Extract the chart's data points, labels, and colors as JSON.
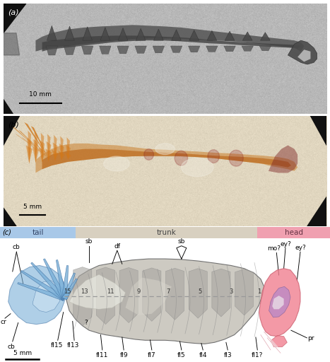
{
  "fig_width": 4.67,
  "fig_height": 5.12,
  "bg_color": "#ffffff",
  "scale_bar_a": "10 mm",
  "scale_bar_b": "5 mm",
  "scale_bar_c": "5 mm",
  "tail_bar_color": "#a8c8e8",
  "trunk_bar_color": "#d8d0c0",
  "head_bar_color": "#f0a0b0",
  "tail_label": "tail",
  "trunk_label": "trunk",
  "head_label": "head",
  "body_fill": "#c8c5bc",
  "body_edge": "#666666",
  "blue_fill": "#7ab0d8",
  "blue_edge": "#4878a8",
  "pink_fill": "#f08090",
  "pink_edge": "#cc6070",
  "purple_fill": "#b888c8",
  "purple_edge": "#806098",
  "dashed_color": "#999999",
  "seg_nums": [
    "15",
    "13",
    "11",
    "9",
    "7",
    "5",
    "3",
    "1"
  ],
  "seg_x": [
    2.05,
    2.55,
    3.35,
    4.2,
    5.1,
    6.05,
    7.0,
    7.85
  ],
  "panel_c_label": "(c)",
  "panel_a_rock": "#b8b8b8",
  "panel_a_dark": "#383838",
  "panel_b_bg": "#ddd0b0"
}
